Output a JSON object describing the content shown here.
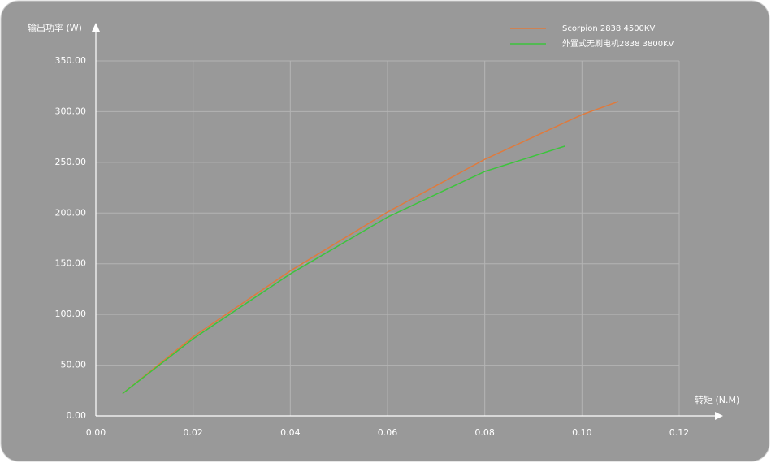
{
  "chart_data": {
    "type": "line",
    "x_label": "转矩 (N.M)",
    "y_label": "输出功率 (W)",
    "xlim": [
      0,
      0.12
    ],
    "ylim": [
      0,
      350
    ],
    "xticks": [
      {
        "value": 0,
        "label": "0.00"
      },
      {
        "value": 0.02,
        "label": "0.02"
      },
      {
        "value": 0.04,
        "label": "0.04"
      },
      {
        "value": 0.06,
        "label": "0.06"
      },
      {
        "value": 0.08,
        "label": "0.08"
      },
      {
        "value": 0.1,
        "label": "0.10"
      },
      {
        "value": 0.12,
        "label": "0.12"
      }
    ],
    "yticks": [
      {
        "value": 0,
        "label": "0.00"
      },
      {
        "value": 50,
        "label": "50.00"
      },
      {
        "value": 100,
        "label": "100.00"
      },
      {
        "value": 150,
        "label": "150.00"
      },
      {
        "value": 200,
        "label": "200.00"
      },
      {
        "value": 250,
        "label": "250.00"
      },
      {
        "value": 300,
        "label": "300.00"
      },
      {
        "value": 350,
        "label": "350.00"
      }
    ],
    "grid": true,
    "series": [
      {
        "name": "Scorpion 2838 4500KV",
        "color": "#e07a3c",
        "x": [
          0.0055,
          0.02,
          0.04,
          0.06,
          0.08,
          0.1,
          0.1075
        ],
        "values": [
          22,
          78,
          143,
          201,
          253,
          297,
          310
        ]
      },
      {
        "name": "外置式无刷电机2838 3800KV",
        "color": "#3cc43c",
        "x": [
          0.0055,
          0.02,
          0.04,
          0.06,
          0.08,
          0.0965
        ],
        "values": [
          22,
          76,
          140,
          196,
          241,
          266
        ]
      }
    ]
  }
}
